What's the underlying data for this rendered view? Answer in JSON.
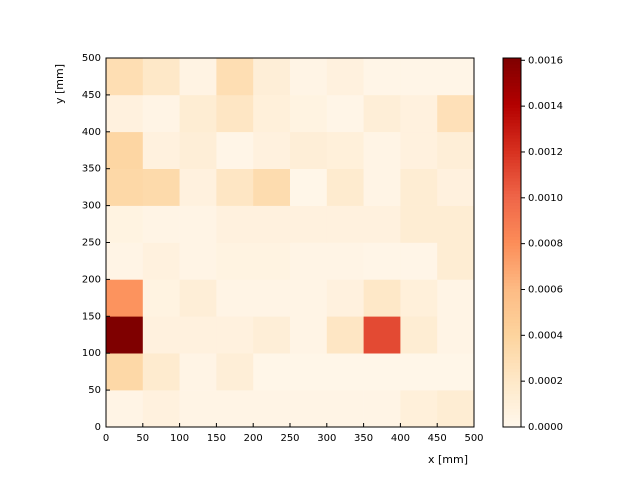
{
  "chart_data": {
    "type": "heatmap",
    "xlabel": "x [mm]",
    "ylabel": "y [mm]",
    "x_bins": [
      0,
      50,
      100,
      150,
      200,
      250,
      300,
      350,
      400,
      450,
      500
    ],
    "y_bins": [
      0,
      50,
      100,
      150,
      200,
      250,
      300,
      350,
      400,
      450,
      500
    ],
    "values": [
      [
        4e-05,
        8e-05,
        4e-05,
        4e-05,
        4e-05,
        4e-05,
        4e-05,
        4e-05,
        0.0001,
        0.00014
      ],
      [
        0.00036,
        0.00016,
        4e-05,
        0.00012,
        2e-05,
        2e-05,
        2e-05,
        2e-05,
        2e-05,
        2e-05
      ],
      [
        0.00161,
        8e-05,
        8e-05,
        8e-05,
        0.00012,
        4e-05,
        0.00022,
        0.00111,
        0.00014,
        4e-05
      ],
      [
        0.00078,
        6e-05,
        0.00012,
        4e-05,
        4e-05,
        4e-05,
        8e-05,
        0.0002,
        0.0001,
        4e-05
      ],
      [
        4e-05,
        8e-05,
        4e-05,
        6e-05,
        6e-05,
        4e-05,
        4e-05,
        3e-05,
        3e-05,
        0.00014
      ],
      [
        6e-05,
        4e-05,
        4e-05,
        8e-05,
        8e-05,
        8e-05,
        8e-05,
        8e-05,
        0.00014,
        0.00014
      ],
      [
        0.00036,
        0.00034,
        8e-05,
        0.00022,
        0.00032,
        2e-05,
        0.00016,
        4e-05,
        0.00014,
        8e-05
      ],
      [
        0.00038,
        8e-05,
        0.00012,
        3e-05,
        8e-05,
        0.00012,
        0.0001,
        4e-05,
        8e-05,
        0.00012
      ],
      [
        8e-05,
        4e-05,
        0.00014,
        0.00022,
        0.0001,
        6e-05,
        3e-05,
        0.00012,
        8e-05,
        0.00028
      ],
      [
        0.0003,
        0.0002,
        5e-05,
        0.0003,
        0.00012,
        4e-05,
        8e-05,
        3e-05,
        3e-05,
        3e-05
      ]
    ],
    "xlim": [
      0,
      500
    ],
    "ylim": [
      0,
      500
    ],
    "xticks": [
      0,
      50,
      100,
      150,
      200,
      250,
      300,
      350,
      400,
      450,
      500
    ],
    "yticks": [
      0,
      50,
      100,
      150,
      200,
      250,
      300,
      350,
      400,
      450,
      500
    ],
    "clim": [
      0,
      0.00161
    ],
    "cticks": [
      {
        "value": 0,
        "label": "0.0000"
      },
      0.0002,
      0.0004,
      0.0006,
      0.0008,
      {
        "value": 0.001,
        "label": "0.0010"
      },
      0.0012,
      0.0014,
      0.0016
    ],
    "colormap": [
      "#fff7ec",
      "#fee8c8",
      "#fdd49e",
      "#fdbb84",
      "#fc8d59",
      "#ef6548",
      "#d7301f",
      "#b30000",
      "#7f0000"
    ]
  }
}
